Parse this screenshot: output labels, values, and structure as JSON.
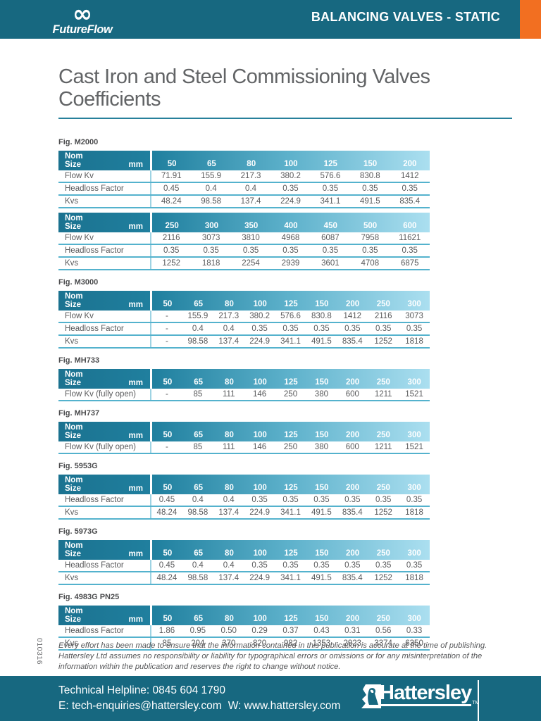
{
  "header": {
    "banner_title": "BALANCING VALVES - STATIC",
    "logo_text": "FutureFlow",
    "logo_icon": "infinity-icon",
    "logo_icon_glyph": "∞"
  },
  "page_title": "Cast Iron and Steel Commissioning Valves Coefficients",
  "table_header": {
    "line1": "Nom",
    "line2": "Size",
    "unit": "mm"
  },
  "sections": [
    {
      "fig_label": "Fig. M2000",
      "tables": [
        {
          "columns": [
            "50",
            "65",
            "80",
            "100",
            "125",
            "150",
            "200"
          ],
          "rows": [
            {
              "label": "Flow Kv",
              "values": [
                "71.91",
                "155.9",
                "217.3",
                "380.2",
                "576.6",
                "830.8",
                "1412"
              ]
            },
            {
              "label": "Headloss Factor",
              "values": [
                "0.45",
                "0.4",
                "0.4",
                "0.35",
                "0.35",
                "0.35",
                "0.35"
              ]
            },
            {
              "label": "Kvs",
              "values": [
                "48.24",
                "98.58",
                "137.4",
                "224.9",
                "341.1",
                "491.5",
                "835.4"
              ]
            }
          ]
        },
        {
          "columns": [
            "250",
            "300",
            "350",
            "400",
            "450",
            "500",
            "600"
          ],
          "rows": [
            {
              "label": "Flow Kv",
              "values": [
                "2116",
                "3073",
                "3810",
                "4968",
                "6087",
                "7958",
                "11621"
              ]
            },
            {
              "label": "Headloss Factor",
              "values": [
                "0.35",
                "0.35",
                "0.35",
                "0.35",
                "0.35",
                "0.35",
                "0.35"
              ]
            },
            {
              "label": "Kvs",
              "values": [
                "1252",
                "1818",
                "2254",
                "2939",
                "3601",
                "4708",
                "6875"
              ]
            }
          ]
        }
      ]
    },
    {
      "fig_label": "Fig. M3000",
      "tables": [
        {
          "columns": [
            "50",
            "65",
            "80",
            "100",
            "125",
            "150",
            "200",
            "250",
            "300"
          ],
          "rows": [
            {
              "label": "Flow Kv",
              "values": [
                "-",
                "155.9",
                "217.3",
                "380.2",
                "576.6",
                "830.8",
                "1412",
                "2116",
                "3073"
              ]
            },
            {
              "label": "Headloss Factor",
              "values": [
                "-",
                "0.4",
                "0.4",
                "0.35",
                "0.35",
                "0.35",
                "0.35",
                "0.35",
                "0.35"
              ]
            },
            {
              "label": "Kvs",
              "values": [
                "-",
                "98.58",
                "137.4",
                "224.9",
                "341.1",
                "491.5",
                "835.4",
                "1252",
                "1818"
              ]
            }
          ]
        }
      ]
    },
    {
      "fig_label": "Fig. MH733",
      "tables": [
        {
          "columns": [
            "50",
            "65",
            "80",
            "100",
            "125",
            "150",
            "200",
            "250",
            "300"
          ],
          "rows": [
            {
              "label": "Flow Kv (fully open)",
              "values": [
                "-",
                "85",
                "111",
                "146",
                "250",
                "380",
                "600",
                "1211",
                "1521"
              ]
            }
          ]
        }
      ]
    },
    {
      "fig_label": "Fig. MH737",
      "tables": [
        {
          "columns": [
            "50",
            "65",
            "80",
            "100",
            "125",
            "150",
            "200",
            "250",
            "300"
          ],
          "rows": [
            {
              "label": "Flow Kv (fully open)",
              "values": [
                "-",
                "85",
                "111",
                "146",
                "250",
                "380",
                "600",
                "1211",
                "1521"
              ]
            }
          ]
        }
      ]
    },
    {
      "fig_label": "Fig. 5953G",
      "tables": [
        {
          "columns": [
            "50",
            "65",
            "80",
            "100",
            "125",
            "150",
            "200",
            "250",
            "300"
          ],
          "rows": [
            {
              "label": "Headloss Factor",
              "values": [
                "0.45",
                "0.4",
                "0.4",
                "0.35",
                "0.35",
                "0.35",
                "0.35",
                "0.35",
                "0.35"
              ]
            },
            {
              "label": "Kvs",
              "values": [
                "48.24",
                "98.58",
                "137.4",
                "224.9",
                "341.1",
                "491.5",
                "835.4",
                "1252",
                "1818"
              ]
            }
          ]
        }
      ]
    },
    {
      "fig_label": "Fig. 5973G",
      "tables": [
        {
          "columns": [
            "50",
            "65",
            "80",
            "100",
            "125",
            "150",
            "200",
            "250",
            "300"
          ],
          "rows": [
            {
              "label": "Headloss Factor",
              "values": [
                "0.45",
                "0.4",
                "0.4",
                "0.35",
                "0.35",
                "0.35",
                "0.35",
                "0.35",
                "0.35"
              ]
            },
            {
              "label": "Kvs",
              "values": [
                "48.24",
                "98.58",
                "137.4",
                "224.9",
                "341.1",
                "491.5",
                "835.4",
                "1252",
                "1818"
              ]
            }
          ]
        }
      ]
    },
    {
      "fig_label": "Fig. 4983G PN25",
      "tables": [
        {
          "columns": [
            "50",
            "65",
            "80",
            "100",
            "125",
            "150",
            "200",
            "250",
            "300"
          ],
          "rows": [
            {
              "label": "Headloss Factor",
              "values": [
                "1.86",
                "0.95",
                "0.50",
                "0.29",
                "0.37",
                "0.43",
                "0.31",
                "0.56",
                "0.33"
              ]
            },
            {
              "label": "Kvs",
              "values": [
                "85",
                "204",
                "370",
                "820",
                "982",
                "1353",
                "2923",
                "3374",
                "6350"
              ]
            }
          ]
        }
      ]
    }
  ],
  "doc_number": "010316",
  "disclaimer": "Every effort has been made to ensure that the information contained in this publication is accurate at the time of publishing. Hattersley Ltd assumes no responsibility or liability for typographical errors or omissions or for any misinterpretation of the information within the publication and reserves the right to change without notice.",
  "footer": {
    "helpline": "Technical Helpline: 0845 604 1790",
    "email_label": "E: tech-enquiries@hattersley.com",
    "web_label": "W: www.hattersley.com",
    "brand": "Hattersley",
    "trademark": "TM",
    "brand_icon": "hattersley-bird-icon"
  },
  "colors": {
    "teal": "#176880",
    "orange": "#f26f21",
    "grad_start": "#1b7290",
    "grad_end": "#abdff0",
    "rowline": "#54b2cd",
    "bodytext": "#58595b",
    "title": "#626466"
  }
}
